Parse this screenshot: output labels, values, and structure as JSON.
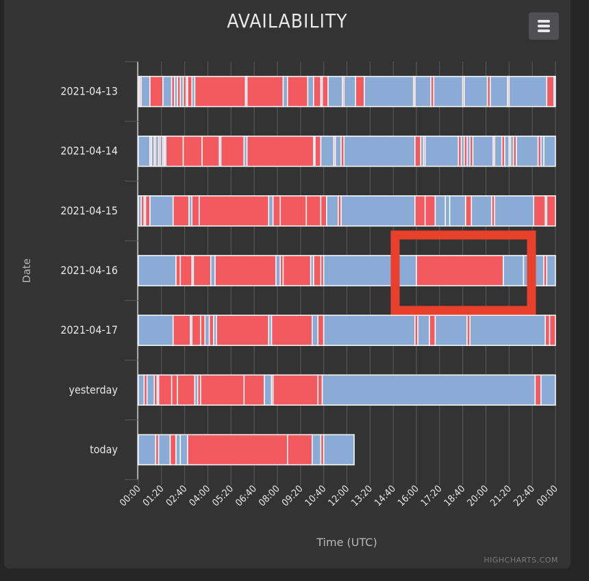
{
  "title": "AVAILABILITY",
  "credits": "HIGHCHARTS.COM",
  "menu_icon": "hamburger-menu-icon",
  "colors": {
    "background": "#262626",
    "card": "#333334",
    "up": "#8aabd5",
    "down": "#f35a60",
    "grid": "#5c5c5c",
    "highlight": "#e8402b"
  },
  "chart_data": {
    "type": "xrange",
    "title": "AVAILABILITY",
    "xlabel": "Time (UTC)",
    "ylabel": "Date",
    "xlim": [
      "00:00",
      "24:00"
    ],
    "x_ticks": [
      "00:00",
      "01:20",
      "02:40",
      "04:00",
      "05:20",
      "06:40",
      "08:00",
      "09:20",
      "10:40",
      "12:00",
      "13:20",
      "14:40",
      "16:00",
      "17:20",
      "18:40",
      "20:00",
      "21:20",
      "22:40",
      "00:00"
    ],
    "categories": [
      "2021-04-13",
      "2021-04-14",
      "2021-04-15",
      "2021-04-16",
      "2021-04-17",
      "yesterday",
      "today"
    ],
    "status_colors": {
      "up": "#8aabd5",
      "down": "#f35a60"
    },
    "rows": [
      {
        "category": "2021-04-13",
        "segments": [
          [
            "00:00",
            "00:05",
            "up"
          ],
          [
            "00:05",
            "00:10",
            "down"
          ],
          [
            "00:10",
            "00:40",
            "up"
          ],
          [
            "00:40",
            "01:25",
            "down"
          ],
          [
            "01:25",
            "01:55",
            "up"
          ],
          [
            "01:55",
            "02:05",
            "down"
          ],
          [
            "02:05",
            "02:15",
            "up"
          ],
          [
            "02:15",
            "02:25",
            "down"
          ],
          [
            "02:25",
            "02:35",
            "up"
          ],
          [
            "02:35",
            "02:45",
            "down"
          ],
          [
            "02:45",
            "02:50",
            "up"
          ],
          [
            "02:50",
            "03:05",
            "down"
          ],
          [
            "03:05",
            "03:15",
            "up"
          ],
          [
            "03:15",
            "06:10",
            "down"
          ],
          [
            "06:10",
            "06:15",
            "up"
          ],
          [
            "06:15",
            "08:20",
            "down"
          ],
          [
            "08:20",
            "08:35",
            "up"
          ],
          [
            "08:35",
            "09:45",
            "down"
          ],
          [
            "09:45",
            "10:05",
            "up"
          ],
          [
            "10:05",
            "10:30",
            "down"
          ],
          [
            "10:30",
            "10:35",
            "up"
          ],
          [
            "10:35",
            "10:55",
            "down"
          ],
          [
            "10:55",
            "11:45",
            "up"
          ],
          [
            "11:45",
            "11:50",
            "down"
          ],
          [
            "11:50",
            "12:30",
            "up"
          ],
          [
            "12:30",
            "13:00",
            "down"
          ],
          [
            "13:00",
            "15:50",
            "up"
          ],
          [
            "15:50",
            "15:55",
            "down"
          ],
          [
            "15:55",
            "16:50",
            "up"
          ],
          [
            "16:50",
            "17:00",
            "down"
          ],
          [
            "17:00",
            "18:40",
            "up"
          ],
          [
            "18:40",
            "18:45",
            "down"
          ],
          [
            "18:45",
            "20:05",
            "up"
          ],
          [
            "20:05",
            "20:15",
            "down"
          ],
          [
            "20:15",
            "21:15",
            "up"
          ],
          [
            "21:15",
            "21:20",
            "down"
          ],
          [
            "21:20",
            "23:30",
            "up"
          ],
          [
            "23:30",
            "23:55",
            "down"
          ],
          [
            "23:55",
            "24:00",
            "up"
          ]
        ]
      },
      {
        "category": "2021-04-14",
        "segments": [
          [
            "00:00",
            "00:40",
            "up"
          ],
          [
            "00:40",
            "00:45",
            "down"
          ],
          [
            "00:45",
            "00:55",
            "up"
          ],
          [
            "00:55",
            "01:00",
            "down"
          ],
          [
            "01:00",
            "01:10",
            "up"
          ],
          [
            "01:10",
            "01:15",
            "down"
          ],
          [
            "01:15",
            "01:25",
            "up"
          ],
          [
            "01:25",
            "01:30",
            "down"
          ],
          [
            "01:30",
            "01:35",
            "up"
          ],
          [
            "01:35",
            "02:35",
            "down"
          ],
          [
            "02:35",
            "03:40",
            "down"
          ],
          [
            "03:40",
            "04:40",
            "down"
          ],
          [
            "04:40",
            "04:45",
            "up"
          ],
          [
            "04:45",
            "06:05",
            "down"
          ],
          [
            "06:05",
            "06:15",
            "up"
          ],
          [
            "06:15",
            "10:05",
            "down"
          ],
          [
            "10:05",
            "10:10",
            "up"
          ],
          [
            "10:10",
            "10:30",
            "down"
          ],
          [
            "10:30",
            "11:15",
            "up"
          ],
          [
            "11:15",
            "11:20",
            "down"
          ],
          [
            "11:20",
            "11:40",
            "up"
          ],
          [
            "11:40",
            "11:50",
            "down"
          ],
          [
            "11:50",
            "15:55",
            "up"
          ],
          [
            "15:55",
            "16:15",
            "down"
          ],
          [
            "16:15",
            "16:25",
            "up"
          ],
          [
            "16:25",
            "16:30",
            "down"
          ],
          [
            "16:30",
            "18:25",
            "up"
          ],
          [
            "18:25",
            "18:35",
            "down"
          ],
          [
            "18:35",
            "18:45",
            "up"
          ],
          [
            "18:45",
            "18:55",
            "down"
          ],
          [
            "18:55",
            "19:05",
            "up"
          ],
          [
            "19:05",
            "19:15",
            "down"
          ],
          [
            "19:15",
            "20:25",
            "up"
          ],
          [
            "20:25",
            "20:30",
            "down"
          ],
          [
            "20:30",
            "20:55",
            "up"
          ],
          [
            "20:55",
            "21:05",
            "down"
          ],
          [
            "21:05",
            "21:20",
            "up"
          ],
          [
            "21:20",
            "21:25",
            "down"
          ],
          [
            "21:25",
            "21:35",
            "up"
          ],
          [
            "21:35",
            "21:45",
            "down"
          ],
          [
            "21:45",
            "23:00",
            "up"
          ],
          [
            "23:00",
            "23:10",
            "down"
          ],
          [
            "23:10",
            "23:20",
            "up"
          ],
          [
            "23:20",
            "24:00",
            "up"
          ]
        ]
      },
      {
        "category": "2021-04-15",
        "segments": [
          [
            "00:00",
            "00:10",
            "up"
          ],
          [
            "00:10",
            "00:20",
            "down"
          ],
          [
            "00:20",
            "00:25",
            "up"
          ],
          [
            "00:25",
            "00:40",
            "down"
          ],
          [
            "00:40",
            "02:00",
            "up"
          ],
          [
            "02:00",
            "02:55",
            "down"
          ],
          [
            "02:55",
            "03:05",
            "up"
          ],
          [
            "03:05",
            "03:30",
            "down"
          ],
          [
            "03:30",
            "07:30",
            "down"
          ],
          [
            "07:30",
            "07:45",
            "up"
          ],
          [
            "07:45",
            "08:10",
            "down"
          ],
          [
            "08:10",
            "09:40",
            "down"
          ],
          [
            "09:40",
            "10:30",
            "down"
          ],
          [
            "10:30",
            "10:50",
            "down"
          ],
          [
            "10:50",
            "11:30",
            "up"
          ],
          [
            "11:30",
            "11:40",
            "down"
          ],
          [
            "11:40",
            "15:55",
            "up"
          ],
          [
            "15:55",
            "16:30",
            "down"
          ],
          [
            "16:30",
            "17:05",
            "down"
          ],
          [
            "17:05",
            "17:40",
            "up"
          ],
          [
            "17:40",
            "17:55",
            "up"
          ],
          [
            "17:55",
            "18:50",
            "up"
          ],
          [
            "18:50",
            "19:10",
            "down"
          ],
          [
            "19:10",
            "20:20",
            "up"
          ],
          [
            "20:20",
            "20:30",
            "down"
          ],
          [
            "20:30",
            "22:45",
            "up"
          ],
          [
            "22:45",
            "23:25",
            "down"
          ],
          [
            "23:25",
            "23:30",
            "up"
          ],
          [
            "23:30",
            "24:00",
            "down"
          ]
        ]
      },
      {
        "category": "2021-04-16",
        "segments": [
          [
            "00:00",
            "02:10",
            "up"
          ],
          [
            "02:10",
            "02:25",
            "down"
          ],
          [
            "02:25",
            "03:05",
            "down"
          ],
          [
            "03:05",
            "03:10",
            "up"
          ],
          [
            "03:10",
            "04:10",
            "down"
          ],
          [
            "04:10",
            "04:25",
            "up"
          ],
          [
            "04:25",
            "07:55",
            "down"
          ],
          [
            "07:55",
            "08:10",
            "up"
          ],
          [
            "08:10",
            "08:20",
            "down"
          ],
          [
            "08:20",
            "09:55",
            "down"
          ],
          [
            "09:55",
            "10:05",
            "up"
          ],
          [
            "10:05",
            "10:30",
            "down"
          ],
          [
            "10:30",
            "10:40",
            "down"
          ],
          [
            "10:40",
            "16:00",
            "up"
          ],
          [
            "16:00",
            "21:00",
            "down"
          ],
          [
            "21:00",
            "22:10",
            "up"
          ],
          [
            "22:10",
            "23:20",
            "up"
          ],
          [
            "23:20",
            "23:30",
            "down"
          ],
          [
            "23:30",
            "24:00",
            "up"
          ]
        ]
      },
      {
        "category": "2021-04-17",
        "segments": [
          [
            "00:00",
            "02:00",
            "up"
          ],
          [
            "02:00",
            "03:00",
            "down"
          ],
          [
            "03:00",
            "03:05",
            "up"
          ],
          [
            "03:05",
            "03:35",
            "down"
          ],
          [
            "03:35",
            "03:50",
            "down"
          ],
          [
            "03:50",
            "04:05",
            "up"
          ],
          [
            "04:05",
            "04:20",
            "down"
          ],
          [
            "04:20",
            "04:30",
            "up"
          ],
          [
            "04:30",
            "07:30",
            "down"
          ],
          [
            "07:30",
            "07:40",
            "up"
          ],
          [
            "07:40",
            "10:00",
            "down"
          ],
          [
            "10:00",
            "10:20",
            "up"
          ],
          [
            "10:20",
            "10:40",
            "down"
          ],
          [
            "10:40",
            "15:55",
            "up"
          ],
          [
            "15:55",
            "16:05",
            "down"
          ],
          [
            "16:05",
            "16:45",
            "up"
          ],
          [
            "16:45",
            "17:05",
            "down"
          ],
          [
            "17:05",
            "18:55",
            "up"
          ],
          [
            "18:55",
            "19:05",
            "down"
          ],
          [
            "19:05",
            "23:25",
            "up"
          ],
          [
            "23:25",
            "23:40",
            "down"
          ],
          [
            "23:40",
            "24:00",
            "down"
          ]
        ]
      },
      {
        "category": "yesterday",
        "segments": [
          [
            "00:00",
            "00:20",
            "up"
          ],
          [
            "00:20",
            "00:30",
            "down"
          ],
          [
            "00:30",
            "00:55",
            "up"
          ],
          [
            "00:55",
            "01:05",
            "down"
          ],
          [
            "01:05",
            "01:10",
            "up"
          ],
          [
            "01:10",
            "01:55",
            "down"
          ],
          [
            "01:55",
            "02:15",
            "down"
          ],
          [
            "02:15",
            "03:15",
            "down"
          ],
          [
            "03:15",
            "03:25",
            "up"
          ],
          [
            "03:25",
            "03:35",
            "down"
          ],
          [
            "03:35",
            "06:05",
            "down"
          ],
          [
            "06:05",
            "07:15",
            "down"
          ],
          [
            "07:15",
            "07:40",
            "up"
          ],
          [
            "07:40",
            "07:45",
            "down"
          ],
          [
            "07:45",
            "10:20",
            "down"
          ],
          [
            "10:20",
            "10:35",
            "down"
          ],
          [
            "10:35",
            "22:50",
            "up"
          ],
          [
            "22:50",
            "23:10",
            "down"
          ],
          [
            "23:10",
            "24:00",
            "up"
          ]
        ]
      },
      {
        "category": "today",
        "segments": [
          [
            "00:00",
            "01:00",
            "up"
          ],
          [
            "01:00",
            "01:10",
            "down"
          ],
          [
            "01:10",
            "01:50",
            "up"
          ],
          [
            "01:50",
            "02:10",
            "down"
          ],
          [
            "02:10",
            "02:25",
            "up"
          ],
          [
            "02:25",
            "02:50",
            "up"
          ],
          [
            "02:50",
            "08:35",
            "down"
          ],
          [
            "08:35",
            "10:00",
            "down"
          ],
          [
            "10:00",
            "10:30",
            "up"
          ],
          [
            "10:30",
            "10:40",
            "down"
          ],
          [
            "10:40",
            "12:25",
            "up"
          ]
        ]
      }
    ]
  }
}
